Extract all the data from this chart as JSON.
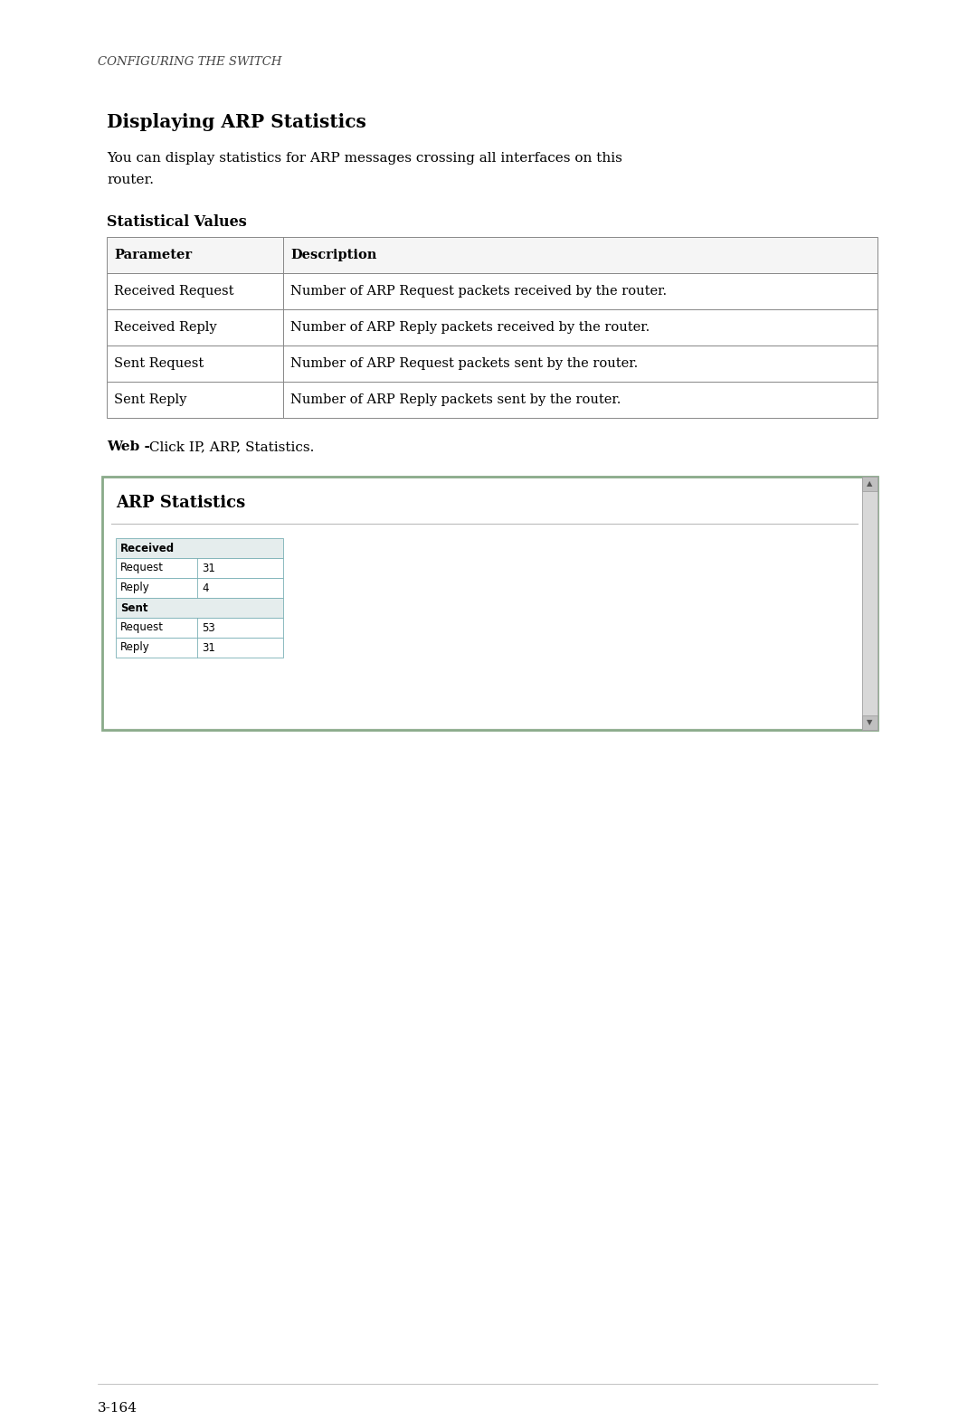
{
  "page_bg": "#ffffff",
  "header_text": "CONFIGURING THE SWITCH",
  "header_font_size": 9.5,
  "section_title": "Displaying ARP Statistics",
  "section_title_font_size": 14.5,
  "intro_line1": "You can display statistics for ARP messages crossing all interfaces on this",
  "intro_line2": "router.",
  "intro_font_size": 11,
  "subsection_title": "Statistical Values",
  "subsection_font_size": 11.5,
  "stat_table_headers": [
    "Parameter",
    "Description"
  ],
  "stat_table_rows": [
    [
      "Received Request",
      "Number of ARP Request packets received by the router."
    ],
    [
      "Received Reply",
      "Number of ARP Reply packets received by the router."
    ],
    [
      "Sent Request",
      "Number of ARP Request packets sent by the router."
    ],
    [
      "Sent Reply",
      "Number of ARP Reply packets sent by the router."
    ]
  ],
  "web_bold": "Web -",
  "web_normal": " Click IP, ARP, Statistics.",
  "web_font_size": 11,
  "screenshot_title": "ARP Statistics",
  "section1_header": "Received",
  "section2_header": "Sent",
  "arp_rows": [
    [
      "Request",
      "31"
    ],
    [
      "Reply",
      "4"
    ],
    [
      "Request",
      "53"
    ],
    [
      "Reply",
      "31"
    ]
  ],
  "footer_text": "3-164",
  "footer_font_size": 11
}
